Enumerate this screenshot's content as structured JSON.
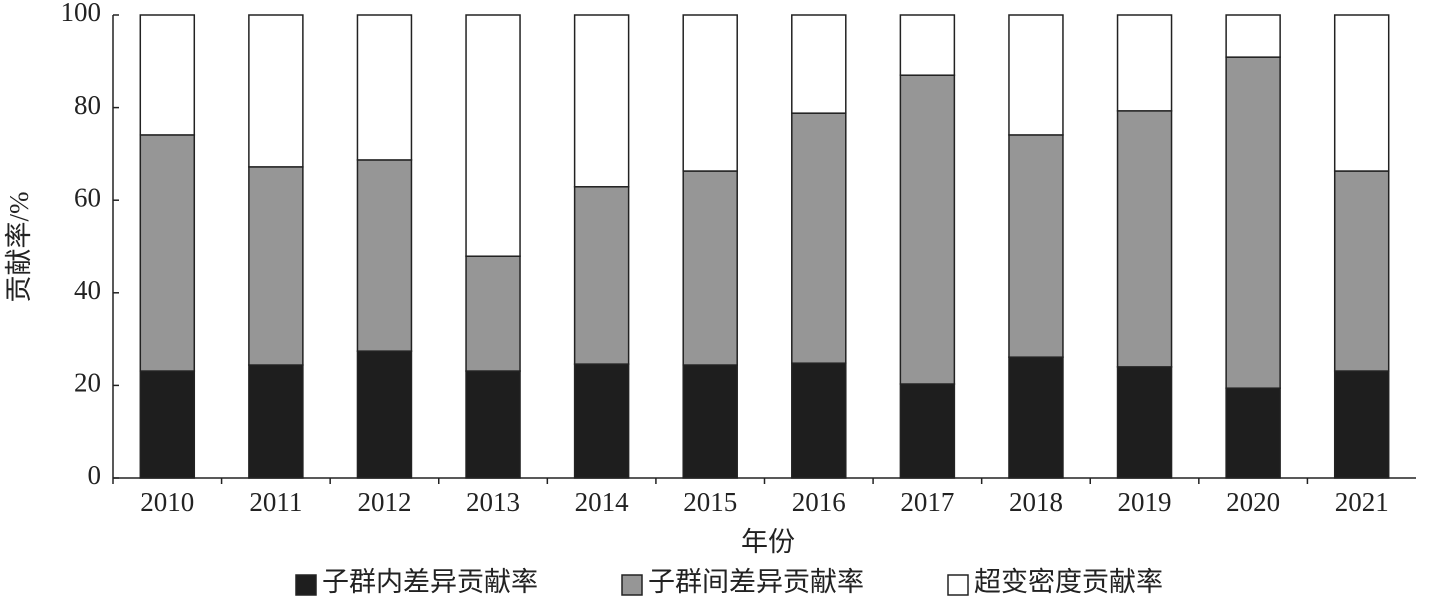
{
  "chart_data": {
    "type": "stacked-bar",
    "x_label": "年份",
    "y_label": "贡献率/%",
    "categories": [
      "2010",
      "2011",
      "2012",
      "2013",
      "2014",
      "2015",
      "2016",
      "2017",
      "2018",
      "2019",
      "2020",
      "2021"
    ],
    "series": [
      {
        "name": "子群内差异贡献率",
        "color": "#1e1e1e",
        "values": [
          23.1,
          24.4,
          27.4,
          23.1,
          24.6,
          24.4,
          24.8,
          20.3,
          26.1,
          24.0,
          19.4,
          23.1
        ]
      },
      {
        "name": "子群间差异贡献率",
        "color": "#969696",
        "values": [
          51.0,
          42.8,
          41.3,
          24.8,
          38.3,
          41.9,
          54.0,
          66.7,
          48.0,
          55.3,
          71.5,
          43.2
        ]
      },
      {
        "name": "超变密度贡献率",
        "color": "#ffffff",
        "values": [
          25.9,
          32.8,
          31.3,
          52.1,
          37.1,
          33.7,
          21.2,
          13.0,
          25.9,
          20.7,
          9.1,
          33.7
        ]
      }
    ],
    "ylim": [
      0,
      100
    ],
    "yticks": [
      0,
      20,
      40,
      60,
      80,
      100
    ],
    "grid": false,
    "legend": "bottom"
  }
}
